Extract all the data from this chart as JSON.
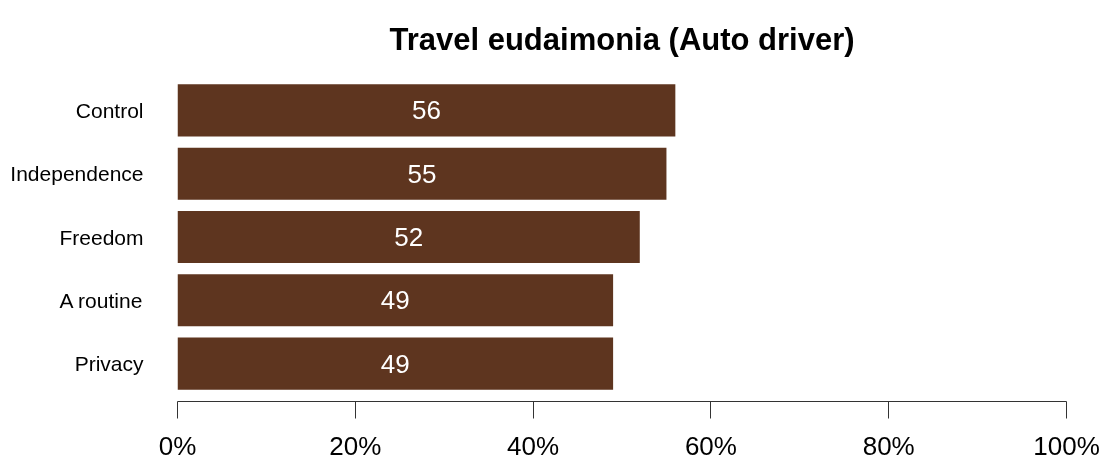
{
  "chart_data": {
    "type": "bar",
    "orientation": "horizontal",
    "title": "Travel eudaimonia (Auto driver)",
    "categories": [
      "Control",
      "Independence",
      "Freedom",
      "A routine",
      "Privacy"
    ],
    "values": [
      56,
      55,
      52,
      49,
      49
    ],
    "color": "#5e351f",
    "data_labels": true,
    "xlim": [
      0,
      100
    ],
    "xticks": [
      {
        "value": 0,
        "label": "0%"
      },
      {
        "value": 20,
        "label": "20%"
      },
      {
        "value": 40,
        "label": "40%"
      },
      {
        "value": 60,
        "label": "60%"
      },
      {
        "value": 80,
        "label": "80%"
      },
      {
        "value": 100,
        "label": "100%"
      }
    ]
  }
}
